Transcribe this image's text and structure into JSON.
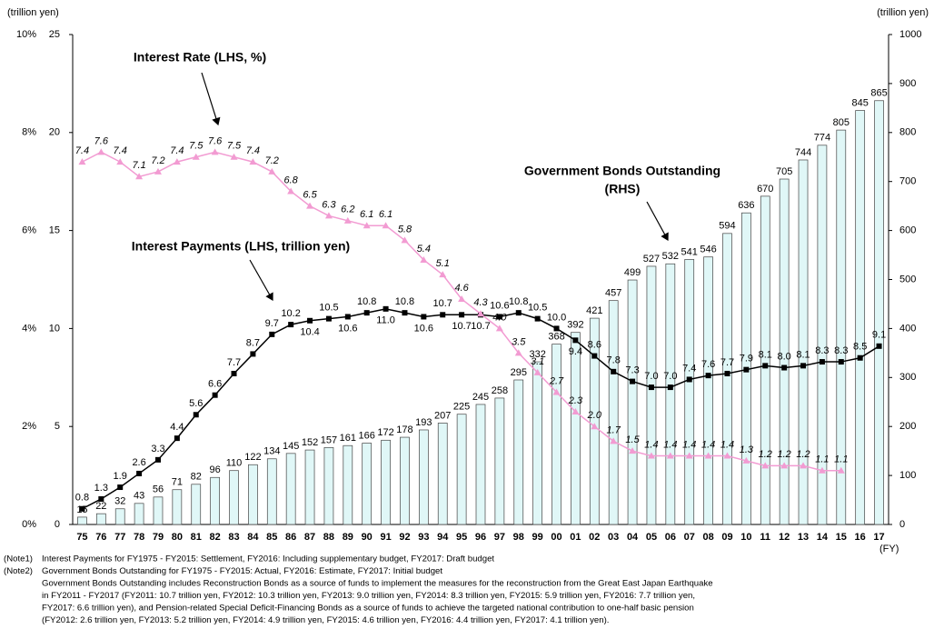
{
  "chart_data": {
    "type": "bar-line",
    "categories": [
      "75",
      "76",
      "77",
      "78",
      "79",
      "80",
      "81",
      "82",
      "83",
      "84",
      "85",
      "86",
      "87",
      "88",
      "89",
      "90",
      "91",
      "92",
      "93",
      "94",
      "95",
      "96",
      "97",
      "98",
      "99",
      "00",
      "01",
      "02",
      "03",
      "04",
      "05",
      "06",
      "07",
      "08",
      "09",
      "10",
      "11",
      "12",
      "13",
      "14",
      "15",
      "16",
      "17"
    ],
    "series": [
      {
        "name": "Government Bonds Outstanding",
        "kind": "bar",
        "axis": "y2",
        "color": "#e0f7f7",
        "values": [
          15,
          22,
          32,
          43,
          56,
          71,
          82,
          96,
          110,
          122,
          134,
          145,
          152,
          157,
          161,
          166,
          172,
          178,
          193,
          207,
          225,
          245,
          258,
          295,
          332,
          368,
          392,
          421,
          457,
          499,
          527,
          532,
          541,
          546,
          594,
          636,
          670,
          705,
          744,
          774,
          805,
          845,
          865
        ]
      },
      {
        "name": "Interest Payments",
        "kind": "line",
        "axis": "y",
        "color": "#000000",
        "values": [
          0.8,
          1.3,
          1.9,
          2.6,
          3.3,
          4.4,
          5.6,
          6.6,
          7.7,
          8.7,
          9.7,
          10.2,
          10.4,
          10.5,
          10.6,
          10.8,
          11.0,
          10.8,
          10.6,
          10.7,
          10.7,
          10.7,
          10.6,
          10.8,
          10.5,
          10.0,
          9.4,
          8.6,
          7.8,
          7.3,
          7.0,
          7.0,
          7.4,
          7.6,
          7.7,
          7.9,
          8.1,
          8.0,
          8.1,
          8.3,
          8.3,
          8.5,
          9.1
        ],
        "value_labels": [
          "0.8",
          "1.3",
          "1.9",
          "2.6",
          "3.3",
          "4.4",
          "5.6",
          "6.6",
          "7.7",
          "8.7",
          "9.7",
          "10.2",
          "10.4",
          "10.5",
          "10.6",
          "10.8",
          "11.0",
          "10.8",
          "10.6",
          "10.7",
          "10.7",
          "10.7",
          "10.6",
          "10.8",
          "10.5",
          "10.0",
          "9.4",
          "8.6",
          "7.8",
          "7.3",
          "7.0",
          "7.0",
          "7.4",
          "7.6",
          "7.7",
          "7.9",
          "8.1",
          "8.0",
          "8.1",
          "8.3",
          "8.3",
          "8.5",
          "9.1"
        ]
      },
      {
        "name": "Interest Rate",
        "kind": "line",
        "axis": "y3",
        "color": "#f29bd2",
        "values": [
          7.4,
          7.6,
          7.4,
          7.1,
          7.2,
          7.4,
          7.5,
          7.6,
          7.5,
          7.4,
          7.2,
          6.8,
          6.5,
          6.3,
          6.2,
          6.1,
          6.1,
          5.8,
          5.4,
          5.1,
          4.6,
          4.3,
          4.0,
          3.5,
          3.1,
          2.7,
          2.3,
          2.0,
          1.7,
          1.5,
          1.4,
          1.4,
          1.4,
          1.4,
          1.4,
          1.3,
          1.2,
          1.2,
          1.2,
          1.1,
          1.1,
          null,
          null
        ],
        "value_labels": [
          "7.4",
          "7.6",
          "7.4",
          "7.1",
          "7.2",
          "7.4",
          "7.5",
          "7.6",
          "7.5",
          "7.4",
          "7.2",
          "6.8",
          "6.5",
          "6.3",
          "6.2",
          "6.1",
          "6.1",
          "5.8",
          "5.4",
          "5.1",
          "4.6",
          "4.3",
          "4.0",
          "3.5",
          "3.1",
          "2.7",
          "2.3",
          "2.0",
          "1.7",
          "1.5",
          "1.4",
          "1.4",
          "1.4",
          "1.4",
          "1.4",
          "1.3",
          "1.2",
          "1.2",
          "1.2",
          "1.1",
          "1.1",
          null,
          null
        ]
      }
    ],
    "ylim": [
      0,
      25
    ],
    "yticks": [
      0,
      5,
      10,
      15,
      20,
      25
    ],
    "y3lim": [
      0,
      10
    ],
    "y3ticks": [
      {
        "value": 0,
        "label": "0%"
      },
      {
        "value": 2,
        "label": "2%"
      },
      {
        "value": 4,
        "label": "4%"
      },
      {
        "value": 6,
        "label": "6%"
      },
      {
        "value": 8,
        "label": "8%"
      },
      {
        "value": 10,
        "label": "10%"
      }
    ],
    "y2lim": [
      0,
      1000
    ],
    "y2ticks": [
      0,
      100,
      200,
      300,
      400,
      500,
      600,
      700,
      800,
      900,
      1000
    ],
    "y_unit": "(trillion yen)",
    "y2_unit": "(trillion yen)",
    "x_unit": "(FY)",
    "annotations": {
      "rate": "Interest Rate (LHS, %)",
      "payments": "Interest Payments (LHS, trillion yen)",
      "bonds": [
        "Government Bonds Outstanding",
        "(RHS)"
      ]
    },
    "notes": [
      {
        "label": "(Note1)",
        "lines": [
          "Interest Payments for FY1975 - FY2015: Settlement, FY2016: Including supplementary budget, FY2017: Draft budget"
        ]
      },
      {
        "label": "(Note2)",
        "lines": [
          "Government Bonds Outstanding for FY1975 - FY2015: Actual, FY2016: Estimate, FY2017: Initial budget",
          "Government Bonds Outstanding includes Reconstruction Bonds as a source of funds to implement the measures for the reconstruction from the Great East Japan Earthquake",
          "in FY2011 - FY2017 (FY2011: 10.7 trillion yen, FY2012: 10.3 trillion yen, FY2013: 9.0 trillion yen, FY2014: 8.3 trillion yen, FY2015: 5.9 trillion yen, FY2016: 7.7 trillion yen,",
          "FY2017: 6.6 trillion yen), and Pension-related Special Deficit-Financing Bonds as a source of funds to achieve the targeted national contribution to one-half basic pension",
          "(FY2012: 2.6 trillion yen, FY2013: 5.2 trillion yen, FY2014: 4.9 trillion yen, FY2015: 4.6 trillion yen, FY2016: 4.4 trillion yen, FY2017: 4.1 trillion yen)."
        ]
      }
    ]
  }
}
